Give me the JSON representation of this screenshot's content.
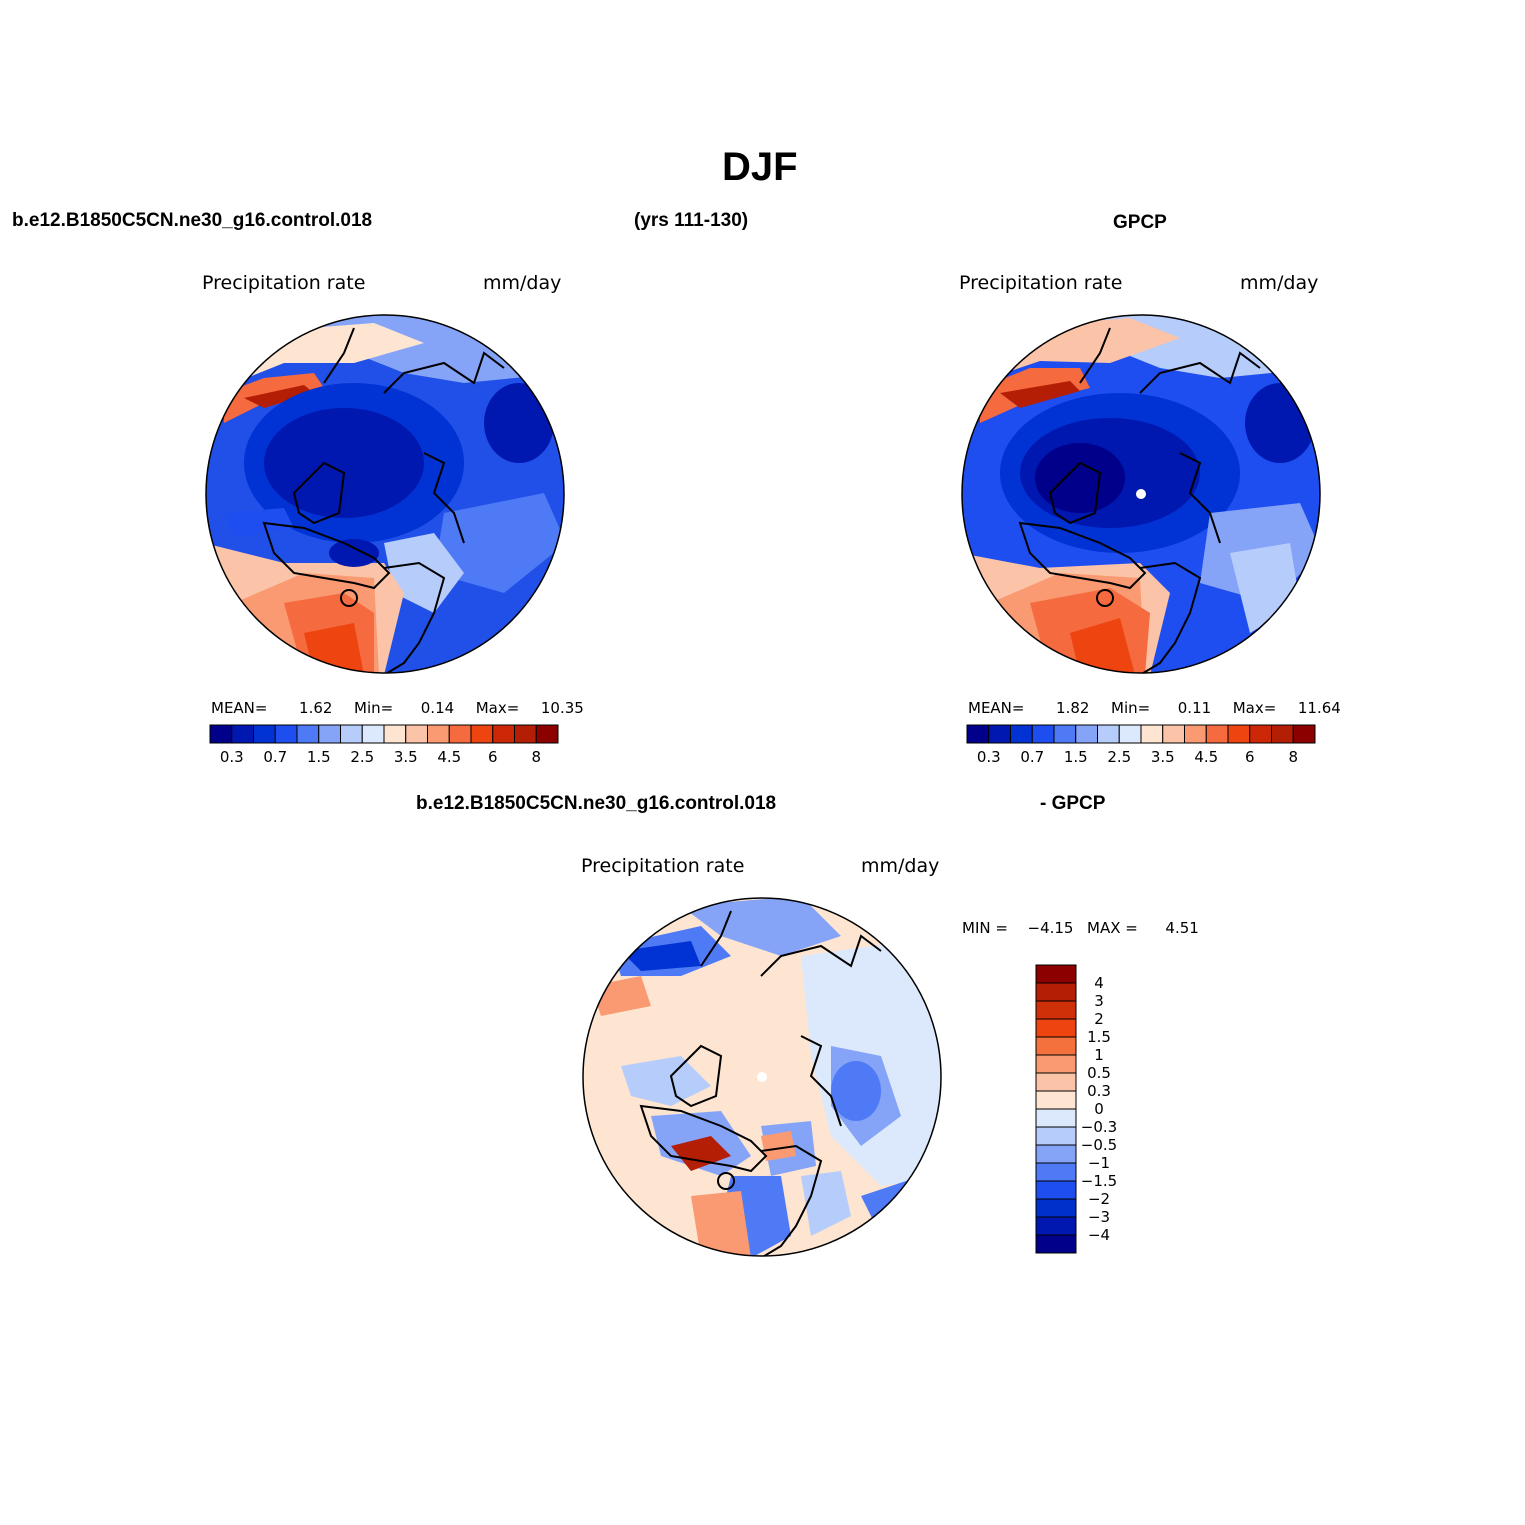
{
  "figure": {
    "title": "DJF",
    "model_case": "b.e12.B1850C5CN.ne30_g16.control.018",
    "years": "(yrs 111-130)",
    "obs_name": "GPCP",
    "diff_case": "b.e12.B1850C5CN.ne30_g16.control.018",
    "diff_obs": "- GPCP"
  },
  "panels": {
    "model": {
      "var_label": "Precipitation  rate",
      "units": "mm/day",
      "stats": {
        "mean_label": "MEAN=",
        "mean": "1.62",
        "min_label": "Min=",
        "min": "0.14",
        "max_label": "Max=",
        "max": "10.35"
      }
    },
    "obs": {
      "var_label": "Precipitation  rate",
      "units": "mm/day",
      "stats": {
        "mean_label": "MEAN=",
        "mean": "1.82",
        "min_label": "Min=",
        "min": "0.11",
        "max_label": "Max=",
        "max": "11.64"
      }
    },
    "diff": {
      "var_label": "Precipitation  rate",
      "units": "mm/day",
      "stats": {
        "min_label": "MIN =",
        "min": "−4.15",
        "max_label": "MAX =",
        "max": "4.51"
      }
    }
  },
  "colorbars": {
    "abs": {
      "colors": [
        "#00008a",
        "#0018b0",
        "#0032d4",
        "#1f4ef0",
        "#4f7af6",
        "#85a4f8",
        "#b6ccfa",
        "#dce9fc",
        "#fde5d2",
        "#fbc4a8",
        "#f99a72",
        "#f56a3e",
        "#ed4410",
        "#cc2808",
        "#b41e04",
        "#8c0000"
      ],
      "tick_labels": [
        "0.3",
        "0.7",
        "1.5",
        "2.5",
        "3.5",
        "4.5",
        "6",
        "8"
      ]
    },
    "diff": {
      "colors_top_to_bottom": [
        "#8c0000",
        "#b41e04",
        "#d03008",
        "#ed4410",
        "#f4703c",
        "#f99a72",
        "#fbc4a8",
        "#fde5d2",
        "#dce9fc",
        "#b6ccfa",
        "#85a4f8",
        "#4f7af6",
        "#1f4ef0",
        "#0030cc",
        "#0018b0",
        "#00008a"
      ],
      "tick_labels": [
        "4",
        "3",
        "2",
        "1.5",
        "1",
        "0.5",
        "0.3",
        "0",
        "−0.3",
        "−0.5",
        "−1",
        "−1.5",
        "−2",
        "−3",
        "−4"
      ]
    }
  }
}
